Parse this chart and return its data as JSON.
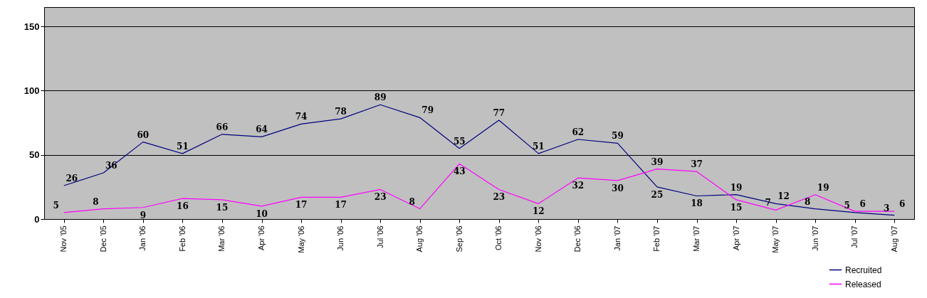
{
  "chart_data": {
    "type": "line",
    "categories": [
      "Nov '05",
      "Dec '05",
      "Jan '06",
      "Feb '06",
      "Mar '06",
      "Apr '06",
      "May '06",
      "Jun '06",
      "Jul '06",
      "Aug '06",
      "Sep '06",
      "Oct '06",
      "Nov '06",
      "Dec '06",
      "Jan '07",
      "Feb '07",
      "Mar '07",
      "Apr '07",
      "May '07",
      "Jun '07",
      "Jul '07",
      "Aug '07"
    ],
    "series": [
      {
        "name": "Recruited",
        "color": "#000080",
        "values": [
          26,
          36,
          60,
          51,
          66,
          64,
          74,
          78,
          89,
          79,
          55,
          77,
          51,
          62,
          59,
          25,
          18,
          19,
          12,
          8,
          5,
          3
        ]
      },
      {
        "name": "Released",
        "color": "#ff00ff",
        "values": [
          5,
          8,
          9,
          16,
          15,
          10,
          17,
          17,
          23,
          8,
          43,
          23,
          12,
          32,
          30,
          39,
          37,
          15,
          7,
          19,
          6,
          6
        ]
      }
    ],
    "ylim": [
      0,
      165
    ],
    "yticks": [
      0,
      50,
      100,
      150
    ],
    "grid": "y",
    "legend": "bottom right",
    "data_labels": true,
    "marker": "none"
  }
}
